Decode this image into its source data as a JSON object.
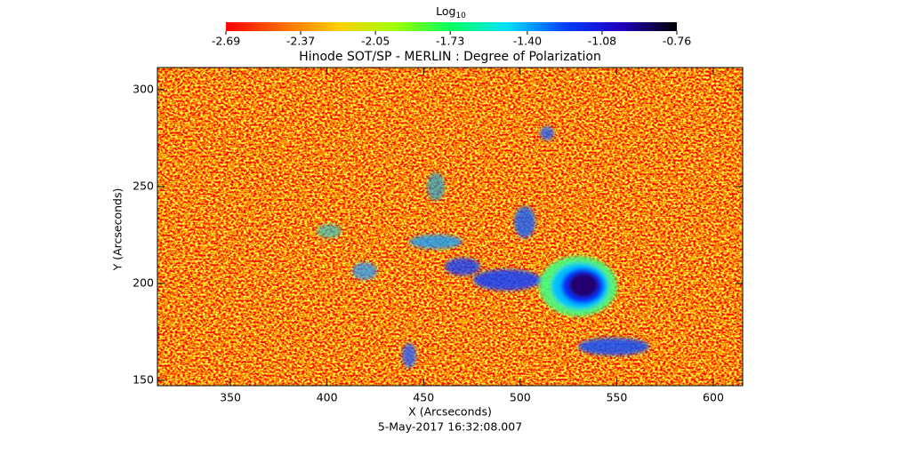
{
  "chart_data": {
    "type": "heatmap",
    "title": "Hinode SOT/SP - MERLIN : Degree of Polarization",
    "x_label": "X (Arcseconds)",
    "y_label": "Y (Arcseconds)",
    "footer": "5-May-2017 16:32:08.007",
    "colorbar_label": "Log",
    "colorbar_label_sub": "10",
    "colormap": [
      "#ff0000",
      "#ff6a00",
      "#ffd000",
      "#a0ff00",
      "#00ff60",
      "#00e0ff",
      "#0040ff",
      "#2000c0",
      "#000000"
    ],
    "clim": [
      -2.69,
      -0.76
    ],
    "cticks": [
      {
        "value": -2.69,
        "label": "-2.69"
      },
      {
        "value": -2.37,
        "label": "-2.37"
      },
      {
        "value": -2.05,
        "label": "-2.05"
      },
      {
        "value": -1.73,
        "label": "-1.73"
      },
      {
        "value": -1.4,
        "label": "-1.40"
      },
      {
        "value": -1.08,
        "label": "-1.08"
      },
      {
        "value": -0.76,
        "label": "-0.76"
      }
    ],
    "xlim": [
      312.2,
      615.2
    ],
    "xticks": [
      350,
      400,
      450,
      500,
      550,
      600
    ],
    "ylim": [
      147.2,
      311.5
    ],
    "yticks": [
      150,
      200,
      250,
      300
    ]
  }
}
